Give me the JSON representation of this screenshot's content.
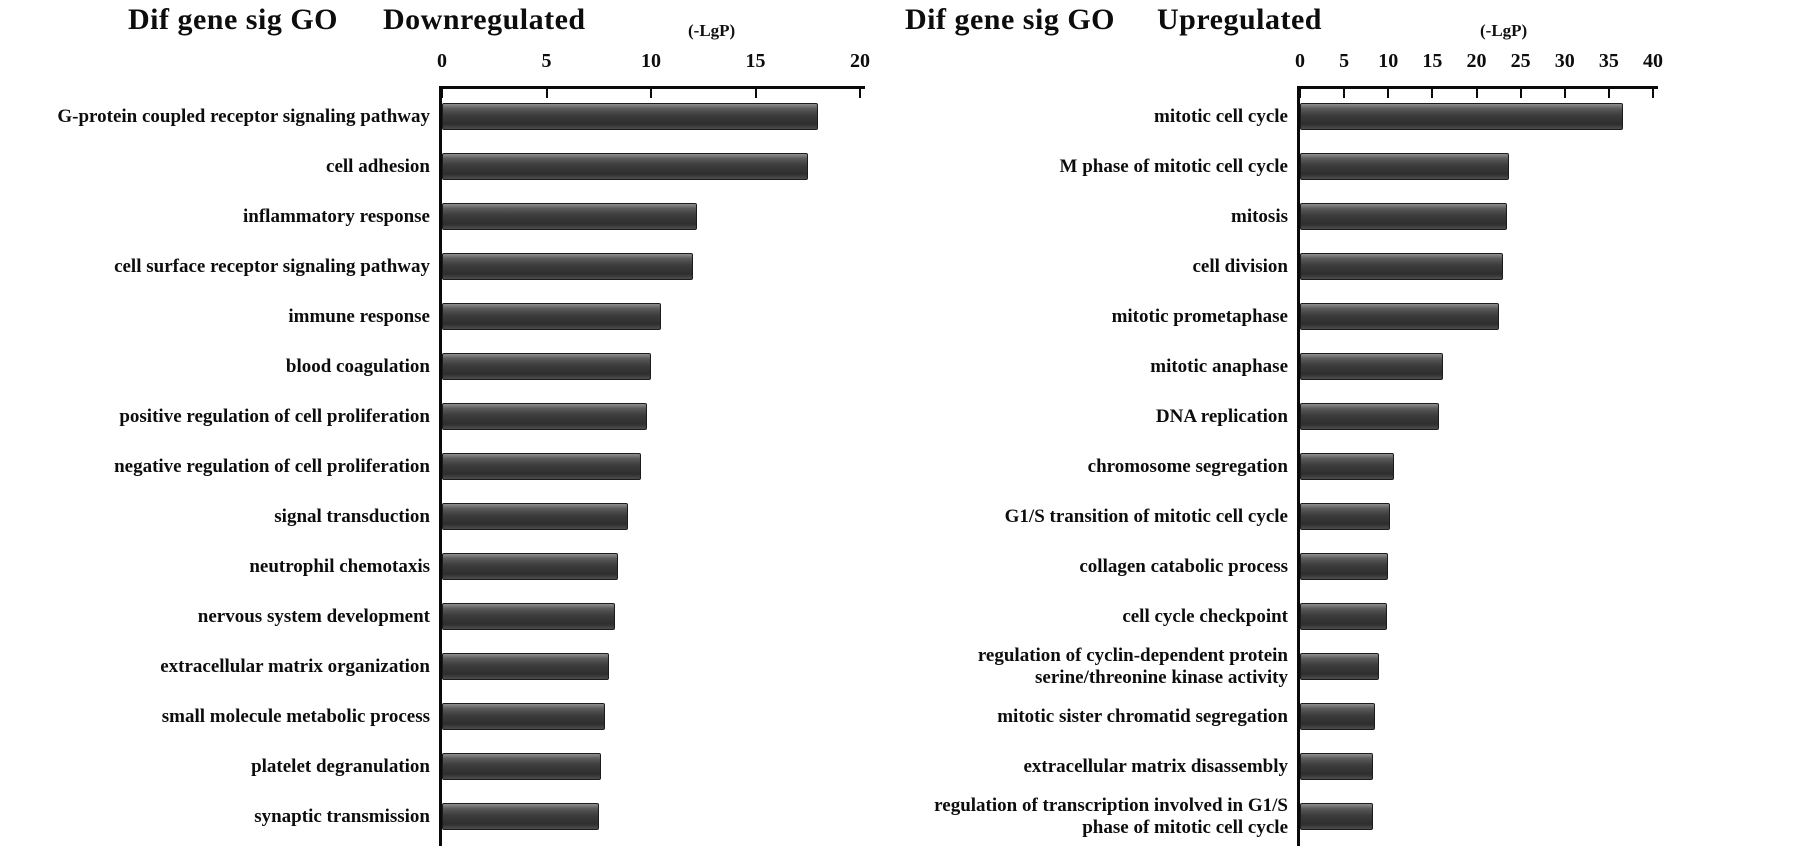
{
  "figure": {
    "background": "#ffffff",
    "text_color": "#0d0d0d",
    "bar_color": "#3d3d3d"
  },
  "chart_data": [
    {
      "type": "bar",
      "orientation": "horizontal",
      "title": "Dif gene sig GO Downregulated",
      "title_parts": {
        "left": "Dif gene sig GO",
        "right": "Downregulated"
      },
      "axis_label": "(-LgP)",
      "xlabel": "(-LgP)",
      "xlim": [
        0,
        20
      ],
      "ticks": [
        0,
        5,
        10,
        15,
        20
      ],
      "grid": false,
      "legend": null,
      "bar_color": "#3d3d3d",
      "categories": [
        "G-protein coupled receptor signaling pathway",
        "cell adhesion",
        "inflammatory response",
        "cell surface receptor signaling pathway",
        "immune response",
        "blood coagulation",
        "positive regulation of cell proliferation",
        "negative regulation of cell proliferation",
        "signal transduction",
        "neutrophil chemotaxis",
        "nervous system development",
        "extracellular matrix organization",
        "small molecule metabolic process",
        "platelet degranulation",
        "synaptic transmission"
      ],
      "values": [
        18.0,
        17.5,
        12.2,
        12.0,
        10.5,
        10.0,
        9.8,
        9.5,
        8.9,
        8.4,
        8.3,
        8.0,
        7.8,
        7.6,
        7.5
      ]
    },
    {
      "type": "bar",
      "orientation": "horizontal",
      "title": "Dif gene sig GO Upregulated",
      "title_parts": {
        "left": "Dif gene sig GO",
        "right": "Upregulated"
      },
      "axis_label": "(-LgP)",
      "xlabel": "(-LgP)",
      "xlim": [
        0,
        40
      ],
      "ticks": [
        0,
        5,
        10,
        15,
        20,
        25,
        30,
        35,
        40
      ],
      "grid": false,
      "legend": null,
      "bar_color": "#3d3d3d",
      "categories": [
        "mitotic cell cycle",
        "M phase of mitotic cell cycle",
        "mitosis",
        "cell division",
        "mitotic prometaphase",
        "mitotic anaphase",
        "DNA replication",
        "chromosome segregation",
        "G1/S transition of mitotic cell cycle",
        "collagen catabolic process",
        "cell cycle checkpoint",
        "regulation of cyclin-dependent protein serine/threonine kinase activity",
        "mitotic sister chromatid segregation",
        "extracellular matrix disassembly",
        "regulation of transcription involved in G1/S phase of mitotic cell cycle"
      ],
      "values": [
        36.6,
        23.7,
        23.5,
        23.0,
        22.5,
        16.2,
        15.8,
        10.6,
        10.2,
        10.0,
        9.9,
        8.9,
        8.5,
        8.3,
        8.3
      ],
      "wrapped_labels": {
        "11": [
          "regulation of cyclin-dependent protein",
          "serine/threonine kinase activity"
        ],
        "14": [
          "regulation of transcription involved in G1/S",
          "phase of mitotic cell cycle"
        ]
      }
    }
  ]
}
